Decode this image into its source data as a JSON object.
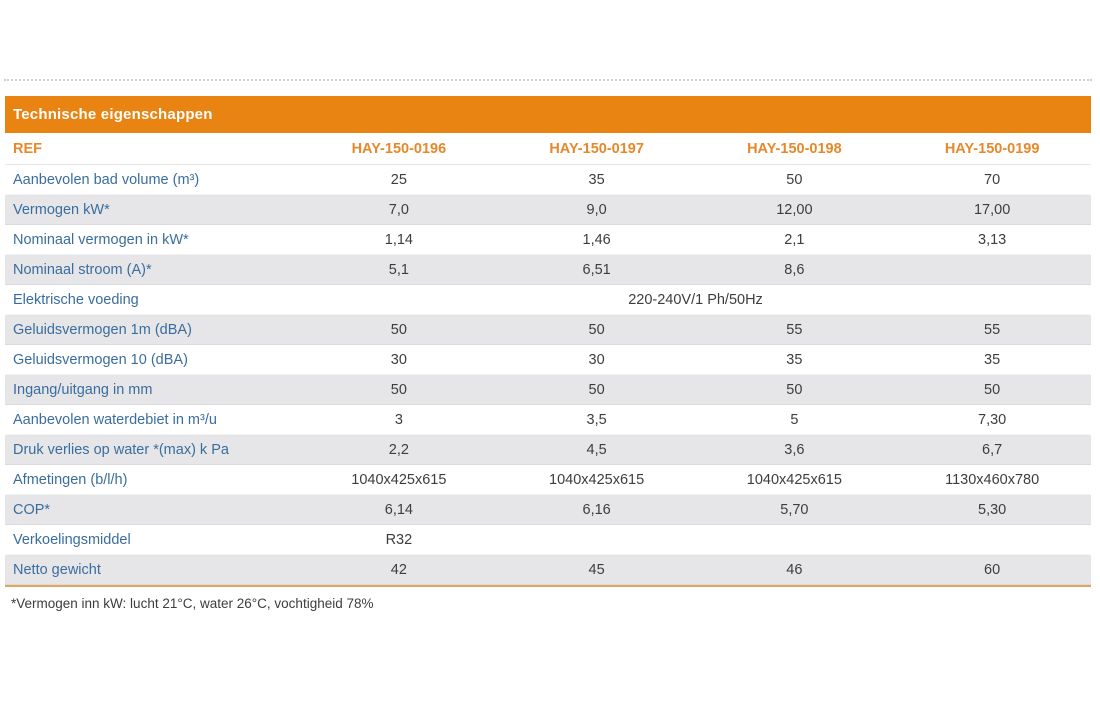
{
  "table": {
    "title": "Technische eigenschappen",
    "header_label": "REF",
    "columns": [
      "HAY-150-0196",
      "HAY-150-0197",
      "HAY-150-0198",
      "HAY-150-0199"
    ],
    "rows": [
      {
        "label": "Aanbevolen bad volume (m³)",
        "values": [
          "25",
          "35",
          "50",
          "70"
        ]
      },
      {
        "label": "Vermogen kW*",
        "values": [
          "7,0",
          "9,0",
          "12,00",
          "17,00"
        ]
      },
      {
        "label": "Nominaal vermogen in kW*",
        "values": [
          "1,14",
          "1,46",
          "2,1",
          "3,13"
        ]
      },
      {
        "label": "Nominaal stroom (A)*",
        "values": [
          "5,1",
          "6,51",
          "8,6",
          ""
        ]
      },
      {
        "label": "Elektrische voeding",
        "span_value": "220-240V/1 Ph/50Hz"
      },
      {
        "label": "Geluidsvermogen 1m (dBA)",
        "values": [
          "50",
          "50",
          "55",
          "55"
        ]
      },
      {
        "label": "Geluidsvermogen 10 (dBA)",
        "values": [
          "30",
          "30",
          "35",
          "35"
        ]
      },
      {
        "label": "Ingang/uitgang in mm",
        "values": [
          "50",
          "50",
          "50",
          "50"
        ]
      },
      {
        "label": "Aanbevolen waterdebiet in m³/u",
        "values": [
          "3",
          "3,5",
          "5",
          "7,30"
        ]
      },
      {
        "label": "Druk verlies op water *(max) k Pa",
        "values": [
          "2,2",
          "4,5",
          "3,6",
          "6,7"
        ]
      },
      {
        "label": "Afmetingen (b/l/h)",
        "values": [
          "1040x425x615",
          "1040x425x615",
          "1040x425x615",
          "1130x460x780"
        ]
      },
      {
        "label": "COP*",
        "values": [
          "6,14",
          "6,16",
          "5,70",
          "5,30"
        ]
      },
      {
        "label": "Verkoelingsmiddel",
        "values": [
          "R32",
          "",
          "",
          ""
        ]
      },
      {
        "label": "Netto gewicht",
        "values": [
          "42",
          "45",
          "46",
          "60"
        ]
      }
    ],
    "footnote": "*Vermogen inn kW: lucht 21°C, water 26°C, vochtigheid 78%"
  },
  "colors": {
    "header_bar": "#E98312",
    "header_text": "#FFFFFF",
    "ref_text": "#E5892B",
    "label_text": "#3A6D9E",
    "value_text": "#3D3D3D",
    "band_row": "#E6E6E8",
    "bottom_rule": "#E2A55F",
    "perforation": "#CFCFCF"
  }
}
